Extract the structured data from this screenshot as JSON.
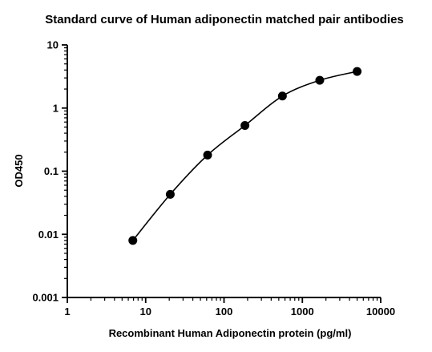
{
  "chart_data": {
    "type": "scatter",
    "title": "Standard curve of Human adiponectin matched pair antibodies",
    "xlabel": "Recombinant Human Adiponectin protein (pg/ml)",
    "ylabel": "OD450",
    "xscale": "log",
    "yscale": "log",
    "xlim": [
      1,
      10000
    ],
    "ylim": [
      0.001,
      10
    ],
    "xticks": [
      1,
      10,
      100,
      1000,
      10000
    ],
    "xtick_labels": [
      "1",
      "10",
      "100",
      "1000",
      "10000"
    ],
    "yticks": [
      0.001,
      0.01,
      0.1,
      1,
      10
    ],
    "ytick_labels": [
      "0.001",
      "0.01",
      "0.1",
      "1",
      "10"
    ],
    "minor_ticks": true,
    "grid": false,
    "legend": "none",
    "fitted_curve": true,
    "series": [
      {
        "x": [
          6.86,
          20.6,
          61.7,
          185,
          556,
          1667,
          5000
        ],
        "y": [
          0.008,
          0.043,
          0.18,
          0.53,
          1.55,
          2.75,
          3.8
        ]
      }
    ],
    "colors": {
      "marker": "#000000",
      "curve": "#000000",
      "axis": "#000000"
    }
  }
}
